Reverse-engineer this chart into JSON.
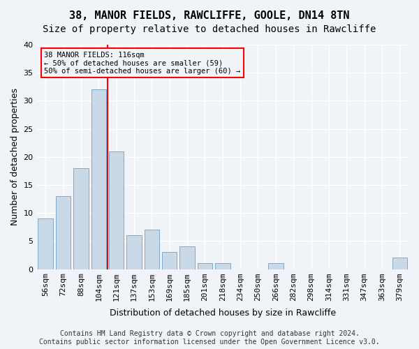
{
  "title1": "38, MANOR FIELDS, RAWCLIFFE, GOOLE, DN14 8TN",
  "title2": "Size of property relative to detached houses in Rawcliffe",
  "xlabel": "Distribution of detached houses by size in Rawcliffe",
  "ylabel": "Number of detached properties",
  "categories": [
    "56sqm",
    "72sqm",
    "88sqm",
    "104sqm",
    "121sqm",
    "137sqm",
    "153sqm",
    "169sqm",
    "185sqm",
    "201sqm",
    "218sqm",
    "234sqm",
    "250sqm",
    "266sqm",
    "282sqm",
    "298sqm",
    "314sqm",
    "331sqm",
    "347sqm",
    "363sqm",
    "379sqm"
  ],
  "values": [
    9,
    13,
    18,
    32,
    21,
    6,
    7,
    3,
    4,
    1,
    1,
    0,
    0,
    1,
    0,
    0,
    0,
    0,
    0,
    0,
    2
  ],
  "bar_color": "#c9d9e8",
  "bar_edge_color": "#7aaac8",
  "red_line_x": 3.5,
  "annotation_title": "38 MANOR FIELDS: 116sqm",
  "annotation_line1": "← 50% of detached houses are smaller (59)",
  "annotation_line2": "50% of semi-detached houses are larger (60) →",
  "ylim": [
    0,
    40
  ],
  "yticks": [
    0,
    5,
    10,
    15,
    20,
    25,
    30,
    35,
    40
  ],
  "footer": "Contains HM Land Registry data © Crown copyright and database right 2024.\nContains public sector information licensed under the Open Government Licence v3.0.",
  "background_color": "#f0f4f8",
  "grid_color": "#ffffff",
  "title_fontsize": 11,
  "subtitle_fontsize": 10,
  "axis_label_fontsize": 9,
  "tick_fontsize": 8,
  "footer_fontsize": 7
}
